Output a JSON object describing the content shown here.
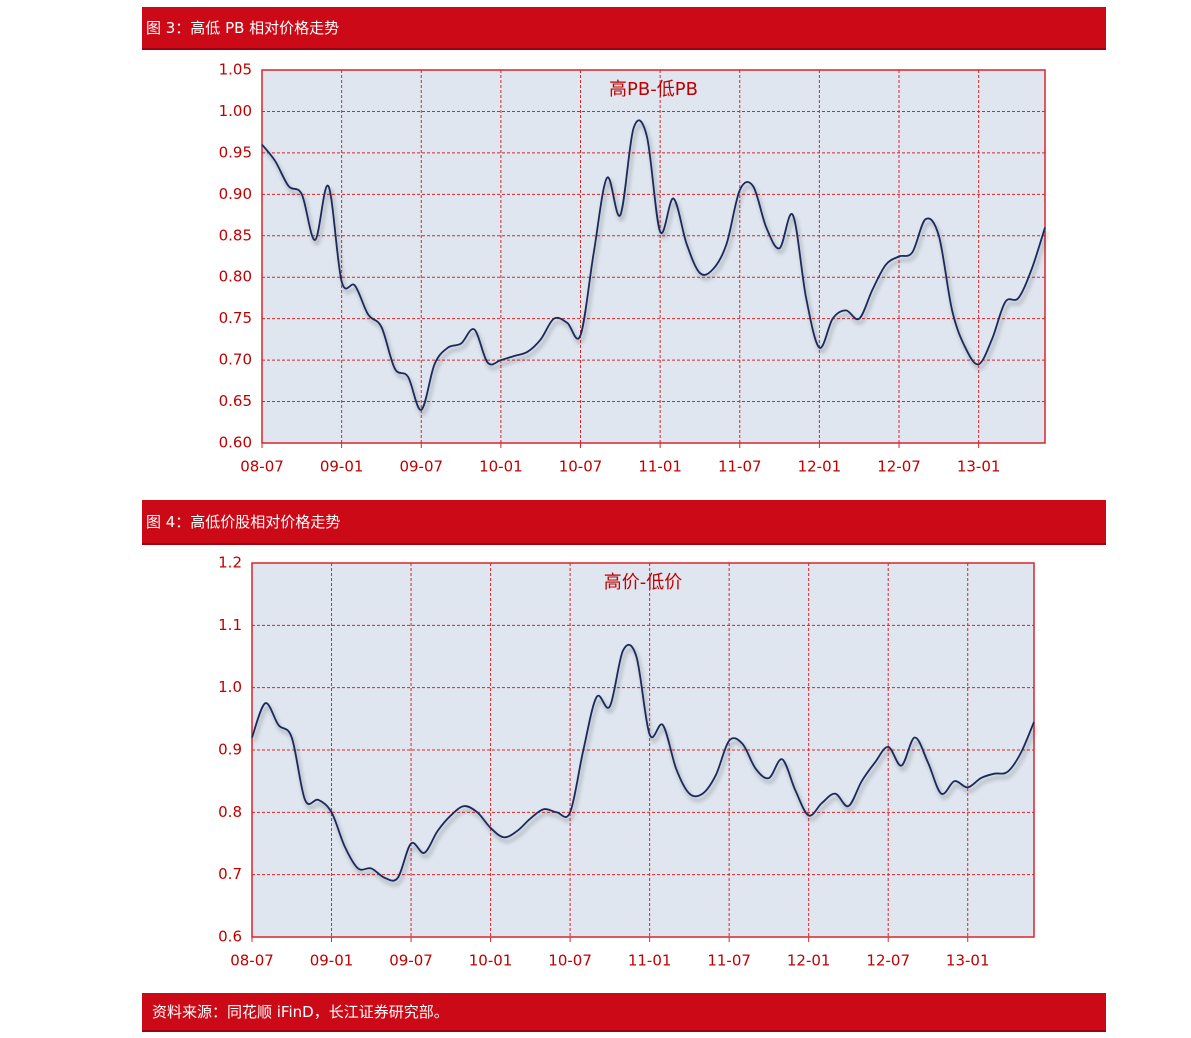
{
  "chart_data": [
    {
      "type": "line",
      "caption": "图 3：高低 PB 相对价格走势",
      "title": "高PB-低PB",
      "grid": true,
      "color": "#1c2a5a",
      "categories": [
        "08-07",
        null,
        null,
        null,
        null,
        null,
        "09-01",
        null,
        null,
        null,
        null,
        null,
        "09-07",
        null,
        null,
        null,
        null,
        null,
        "10-01",
        null,
        null,
        null,
        null,
        null,
        "10-07",
        null,
        null,
        null,
        null,
        null,
        "11-01",
        null,
        null,
        null,
        null,
        null,
        "11-07",
        null,
        null,
        null,
        null,
        null,
        "12-01",
        null,
        null,
        null,
        null,
        null,
        "12-07",
        null,
        null,
        null,
        null,
        null,
        "13-01",
        null,
        null,
        null,
        null,
        null
      ],
      "values": [
        0.96,
        0.94,
        0.91,
        0.9,
        0.845,
        0.91,
        0.795,
        0.79,
        0.755,
        0.74,
        0.69,
        0.68,
        0.64,
        0.695,
        0.715,
        0.72,
        0.737,
        0.697,
        0.7,
        0.705,
        0.71,
        0.725,
        0.75,
        0.745,
        0.73,
        0.83,
        0.92,
        0.875,
        0.98,
        0.97,
        0.855,
        0.895,
        0.84,
        0.805,
        0.81,
        0.84,
        0.905,
        0.91,
        0.86,
        0.835,
        0.875,
        0.775,
        0.715,
        0.75,
        0.76,
        0.75,
        0.785,
        0.815,
        0.825,
        0.83,
        0.87,
        0.85,
        0.76,
        0.715,
        0.695,
        0.725,
        0.77,
        0.775,
        0.81,
        0.86
      ],
      "ylim": [
        0.6,
        1.05
      ],
      "yticks": [
        {
          "value": 0.6,
          "label": "0.60"
        },
        0.65,
        {
          "value": 0.7,
          "label": "0.70"
        },
        0.75,
        {
          "value": 0.8,
          "label": "0.80"
        },
        0.85,
        {
          "value": 0.9,
          "label": "0.90"
        },
        0.95,
        {
          "value": 1,
          "label": "1.00"
        },
        1.05
      ]
    },
    {
      "type": "line",
      "caption": "图 4：高低价股相对价格走势",
      "title": "高价-低价",
      "grid": true,
      "color": "#1c2a5a",
      "categories": [
        "08-07",
        null,
        null,
        null,
        null,
        null,
        "09-01",
        null,
        null,
        null,
        null,
        null,
        "09-07",
        null,
        null,
        null,
        null,
        null,
        "10-01",
        null,
        null,
        null,
        null,
        null,
        "10-07",
        null,
        null,
        null,
        null,
        null,
        "11-01",
        null,
        null,
        null,
        null,
        null,
        "11-07",
        null,
        null,
        null,
        null,
        null,
        "12-01",
        null,
        null,
        null,
        null,
        null,
        "12-07",
        null,
        null,
        null,
        null,
        null,
        "13-01",
        null,
        null,
        null,
        null,
        null
      ],
      "values": [
        0.92,
        0.975,
        0.94,
        0.92,
        0.82,
        0.82,
        0.8,
        0.745,
        0.71,
        0.71,
        0.695,
        0.695,
        0.75,
        0.735,
        0.77,
        0.795,
        0.81,
        0.8,
        0.775,
        0.76,
        0.77,
        0.79,
        0.805,
        0.8,
        0.8,
        0.9,
        0.985,
        0.97,
        1.06,
        1.05,
        0.925,
        0.94,
        0.87,
        0.83,
        0.83,
        0.86,
        0.915,
        0.91,
        0.87,
        0.855,
        0.885,
        0.835,
        0.795,
        0.815,
        0.83,
        0.81,
        0.85,
        0.88,
        0.905,
        0.875,
        0.92,
        0.88,
        0.83,
        0.85,
        0.84,
        0.855,
        0.862,
        0.865,
        0.895,
        0.945
      ],
      "ylim": [
        0.6,
        1.2
      ],
      "yticks": [
        0.6,
        0.7,
        0.8,
        0.9,
        {
          "value": 1,
          "label": "1.0"
        },
        1.1,
        1.2
      ]
    }
  ],
  "source": "资料来源：同花顺 iFinD，长江证券研究部。"
}
